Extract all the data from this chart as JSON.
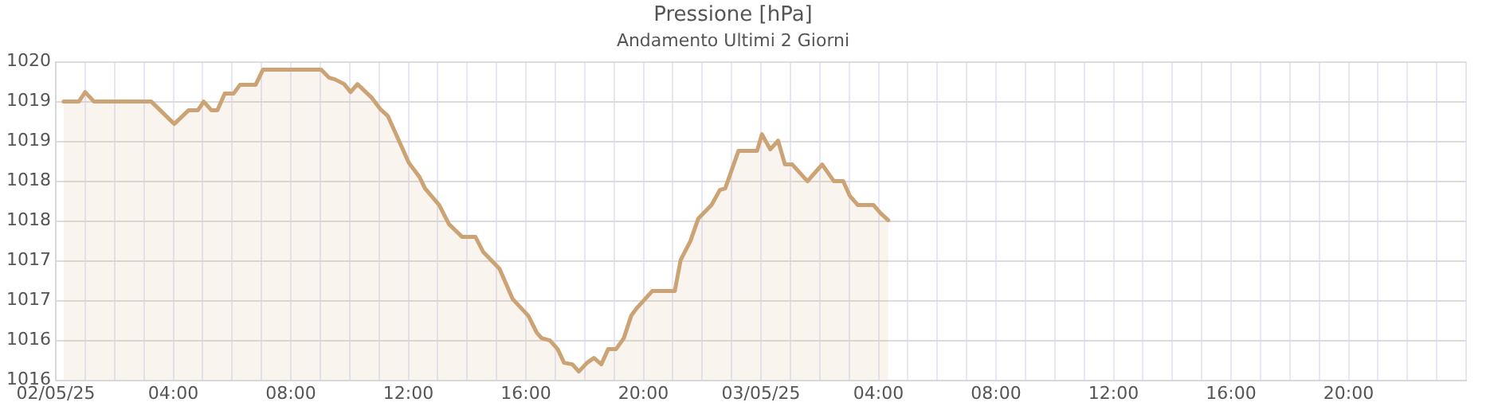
{
  "chart_data": {
    "type": "area",
    "title": "Pressione [hPa]",
    "subtitle": "Andamento Ultimi 2 Giorni",
    "x": [
      "--05-02T00:16",
      "--05-02T00:47",
      "--05-02T01:00",
      "--05-02T01:18",
      "--05-02T03:15",
      "--05-02T04:02",
      "--05-02T04:31",
      "--05-02T04:50",
      "--05-02T05:02",
      "--05-02T05:18",
      "--05-02T05:30",
      "--05-02T05:45",
      "--05-02T06:03",
      "--05-02T06:16",
      "--05-02T06:48",
      "--05-02T07:03",
      "--05-02T09:02",
      "--05-02T09:18",
      "--05-02T09:30",
      "--05-02T09:49",
      "--05-02T10:02",
      "--05-02T10:16",
      "--05-02T10:45",
      "--05-02T11:02",
      "--05-02T11:18",
      "--05-02T12:01",
      "--05-02T12:23",
      "--05-02T12:34",
      "--05-02T13:03",
      "--05-02T13:23",
      "--05-02T13:50",
      "--05-02T14:17",
      "--05-02T14:33",
      "--05-02T15:06",
      "--05-02T15:33",
      "--05-02T16:05",
      "--05-02T16:22",
      "--05-02T16:32",
      "--05-02T16:49",
      "--05-02T17:05",
      "--05-02T17:18",
      "--05-02T17:35",
      "--05-02T17:48",
      "--05-02T18:05",
      "--05-02T18:19",
      "--05-02T18:34",
      "--05-02T18:48",
      "--05-02T19:04",
      "--05-02T19:20",
      "--05-02T19:35",
      "--05-02T19:47",
      "--05-02T20:18",
      "--05-02T21:04",
      "--05-02T21:16",
      "--05-02T21:36",
      "--05-02T21:52",
      "--05-02T22:19",
      "--05-02T22:36",
      "--05-02T22:47",
      "--05-02T23:14",
      "--05-02T23:52",
      "--05-03T00:02",
      "--05-03T00:19",
      "--05-03T00:35",
      "--05-03T00:49",
      "--05-03T01:04",
      "--05-03T01:35",
      "--05-03T02:05",
      "--05-03T02:29",
      "--05-03T02:48",
      "--05-03T03:01",
      "--05-03T03:18",
      "--05-03T03:50",
      "--05-03T04:04",
      "--05-03T04:20"
    ],
    "series": [
      {
        "color": "#cba374",
        "values": [
          1019.5,
          1019.5,
          1019.62,
          1019.5,
          1019.5,
          1019.22,
          1019.39,
          1019.39,
          1019.5,
          1019.39,
          1019.39,
          1019.6,
          1019.6,
          1019.71,
          1019.71,
          1019.9,
          1019.9,
          1019.8,
          1019.78,
          1019.72,
          1019.62,
          1019.72,
          1019.55,
          1019.41,
          1019.32,
          1018.73,
          1018.55,
          1018.41,
          1018.2,
          1017.96,
          1017.8,
          1017.8,
          1017.61,
          1017.4,
          1017.02,
          1016.81,
          1016.6,
          1016.53,
          1016.5,
          1016.39,
          1016.22,
          1016.2,
          1016.11,
          1016.22,
          1016.28,
          1016.2,
          1016.39,
          1016.39,
          1016.53,
          1016.81,
          1016.91,
          1017.12,
          1017.12,
          1017.51,
          1017.75,
          1018.03,
          1018.2,
          1018.39,
          1018.41,
          1018.88,
          1018.88,
          1019.09,
          1018.9,
          1019.01,
          1018.71,
          1018.71,
          1018.5,
          1018.71,
          1018.5,
          1018.5,
          1018.32,
          1018.2,
          1018.2,
          1018.1,
          1018.01
        ]
      }
    ],
    "xlim": [
      "--05-02T00:00",
      "--05-04T00:00"
    ],
    "xticks": [
      {
        "value": "--05-02T00:00",
        "label": "02/05/25"
      },
      {
        "value": "--05-02T01:00",
        "label": null
      },
      {
        "value": "--05-02T02:00",
        "label": null
      },
      {
        "value": "--05-02T03:00",
        "label": null
      },
      {
        "value": "--05-02T04:00",
        "label": "04:00"
      },
      {
        "value": "--05-02T05:00",
        "label": null
      },
      {
        "value": "--05-02T06:00",
        "label": null
      },
      {
        "value": "--05-02T07:00",
        "label": null
      },
      {
        "value": "--05-02T08:00",
        "label": "08:00"
      },
      {
        "value": "--05-02T09:00",
        "label": null
      },
      {
        "value": "--05-02T10:00",
        "label": null
      },
      {
        "value": "--05-02T11:00",
        "label": null
      },
      {
        "value": "--05-02T12:00",
        "label": "12:00"
      },
      {
        "value": "--05-02T13:00",
        "label": null
      },
      {
        "value": "--05-02T14:00",
        "label": null
      },
      {
        "value": "--05-02T15:00",
        "label": null
      },
      {
        "value": "--05-02T16:00",
        "label": "16:00"
      },
      {
        "value": "--05-02T17:00",
        "label": null
      },
      {
        "value": "--05-02T18:00",
        "label": null
      },
      {
        "value": "--05-02T19:00",
        "label": null
      },
      {
        "value": "--05-02T20:00",
        "label": "20:00"
      },
      {
        "value": "--05-02T21:00",
        "label": null
      },
      {
        "value": "--05-02T22:00",
        "label": null
      },
      {
        "value": "--05-02T23:00",
        "label": null
      },
      {
        "value": "--05-03T00:00",
        "label": "03/05/25"
      },
      {
        "value": "--05-03T01:00",
        "label": null
      },
      {
        "value": "--05-03T02:00",
        "label": null
      },
      {
        "value": "--05-03T03:00",
        "label": null
      },
      {
        "value": "--05-03T04:00",
        "label": "04:00"
      },
      {
        "value": "--05-03T05:00",
        "label": null
      },
      {
        "value": "--05-03T06:00",
        "label": null
      },
      {
        "value": "--05-03T07:00",
        "label": null
      },
      {
        "value": "--05-03T08:00",
        "label": "08:00"
      },
      {
        "value": "--05-03T09:00",
        "label": null
      },
      {
        "value": "--05-03T10:00",
        "label": null
      },
      {
        "value": "--05-03T11:00",
        "label": null
      },
      {
        "value": "--05-03T12:00",
        "label": "12:00"
      },
      {
        "value": "--05-03T13:00",
        "label": null
      },
      {
        "value": "--05-03T14:00",
        "label": null
      },
      {
        "value": "--05-03T15:00",
        "label": null
      },
      {
        "value": "--05-03T16:00",
        "label": "16:00"
      },
      {
        "value": "--05-03T17:00",
        "label": null
      },
      {
        "value": "--05-03T18:00",
        "label": null
      },
      {
        "value": "--05-03T19:00",
        "label": null
      },
      {
        "value": "--05-03T20:00",
        "label": "20:00"
      },
      {
        "value": "--05-03T21:00",
        "label": null
      },
      {
        "value": "--05-03T22:00",
        "label": null
      },
      {
        "value": "--05-03T23:00",
        "label": null
      },
      {
        "value": "--05-04T00:00",
        "label": null
      }
    ],
    "ylim": [
      1016,
      1020
    ],
    "yticks": [
      1016,
      {
        "value": 1016.5,
        "label": "1016"
      },
      1017,
      {
        "value": 1017.5,
        "label": "1017"
      },
      1018,
      {
        "value": 1018.5,
        "label": "1018"
      },
      1019,
      {
        "value": 1019.5,
        "label": "1019"
      },
      1020
    ],
    "grid": true,
    "legend": false,
    "marker": "none",
    "line_style": "solid"
  }
}
